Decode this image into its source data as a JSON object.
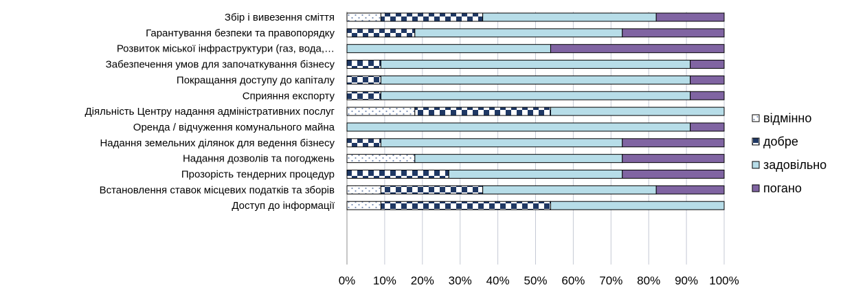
{
  "chart_data": {
    "type": "bar",
    "orientation": "horizontal",
    "stacked": "percent",
    "categories": [
      "Збір і вивезення сміття",
      "Гарантування безпеки та правопорядку",
      "Розвиток міської інфраструктури (газ, вода,…",
      "Забезпечення умов для започаткування бізнесу",
      "Покращання доступу до капіталу",
      "Сприяння експорту",
      "Діяльність Центру надання адміністративних послуг",
      "Оренда / відчуження комунального майна",
      "Надання земельних ділянок для ведення бізнесу",
      "Надання дозволів та погоджень",
      "Прозорість тендерних процедур",
      "Встановлення ставок місцевих податків та зборів",
      "Доступ до інформації"
    ],
    "series": [
      {
        "name": "відмінно",
        "color": "#ffffff",
        "pattern": "dots",
        "values": [
          9,
          0,
          0,
          0,
          0,
          0,
          18,
          0,
          0,
          18,
          0,
          9,
          9
        ]
      },
      {
        "name": "добре",
        "color": "#1f3864",
        "pattern": "checker",
        "values": [
          27,
          18,
          0,
          9,
          9,
          9,
          36,
          0,
          9,
          0,
          27,
          27,
          45
        ]
      },
      {
        "name": "задовільно",
        "color": "#b7dde8",
        "pattern": "solid",
        "values": [
          46,
          55,
          54,
          82,
          82,
          82,
          46,
          91,
          64,
          55,
          46,
          46,
          46
        ]
      },
      {
        "name": "погано",
        "color": "#8064a2",
        "pattern": "solid",
        "values": [
          18,
          27,
          46,
          9,
          9,
          9,
          0,
          9,
          27,
          27,
          27,
          18,
          0
        ]
      }
    ],
    "x_ticks": [
      "0%",
      "10%",
      "20%",
      "30%",
      "40%",
      "50%",
      "60%",
      "70%",
      "80%",
      "90%",
      "100%"
    ],
    "xlim": [
      0,
      100
    ],
    "grid": true,
    "legend_position": "right"
  }
}
